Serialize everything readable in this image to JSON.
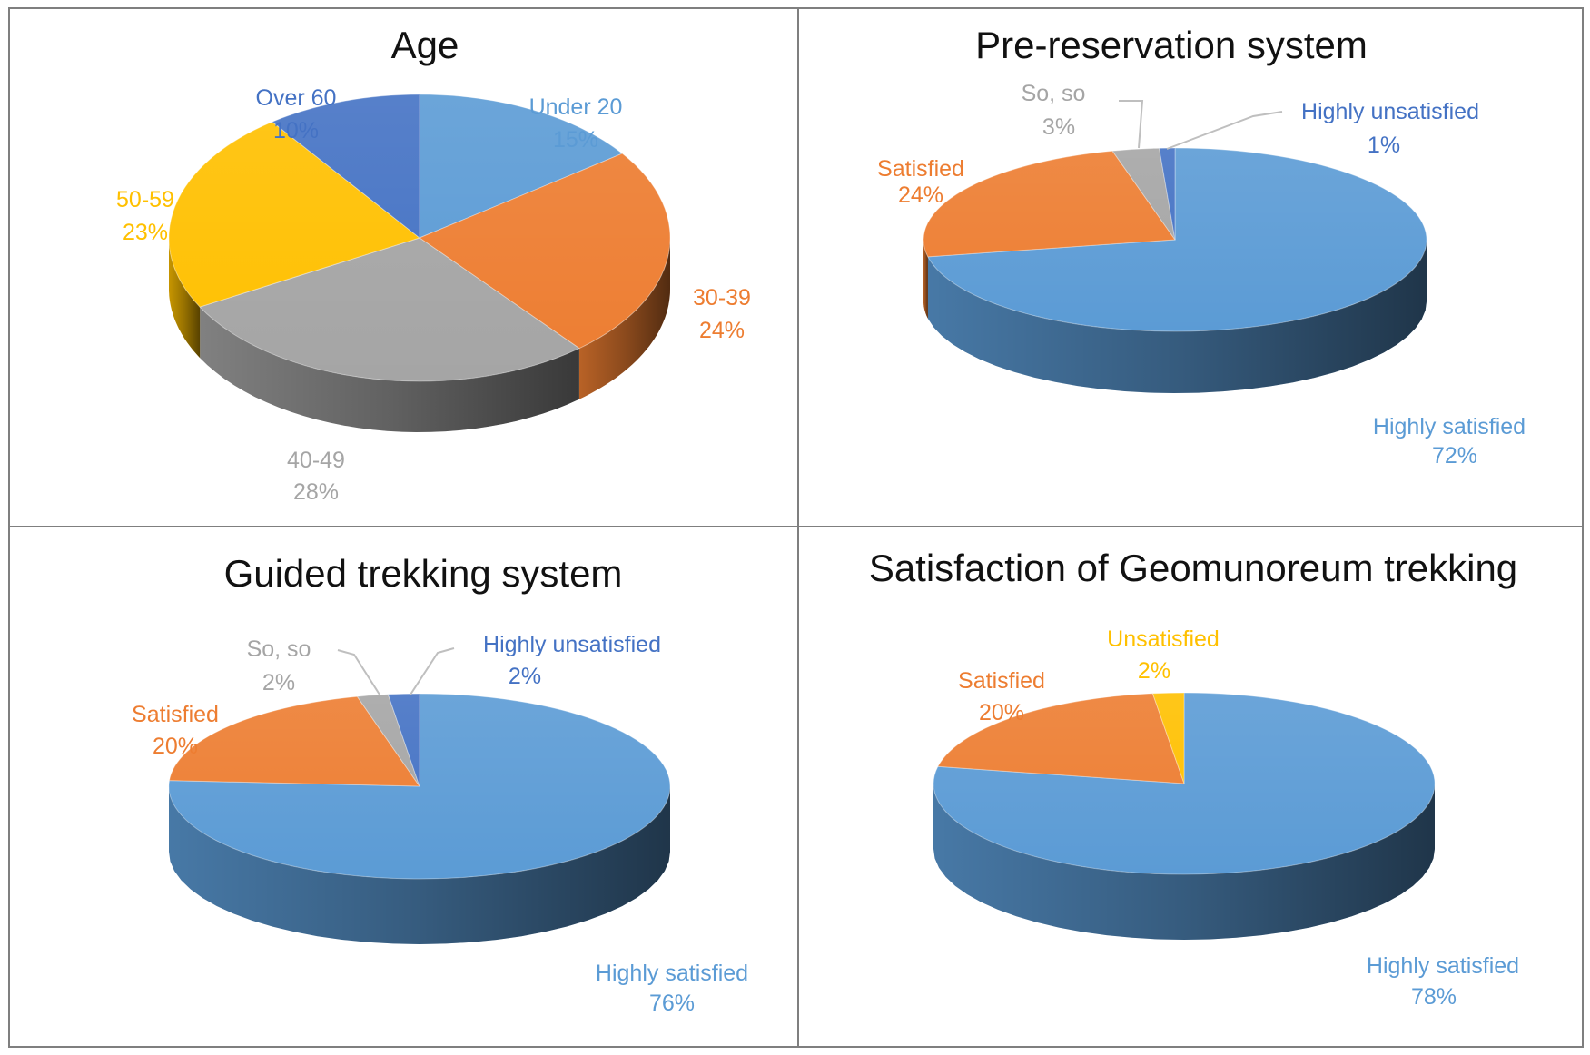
{
  "colors": {
    "blue": "#5b9bd5",
    "orange": "#ed7d31",
    "gray": "#a5a5a5",
    "yellow": "#ffc000",
    "darkblue": "#4472c4",
    "border": "#7f7f7f"
  },
  "chart_data": [
    {
      "type": "pie",
      "title": "Age",
      "slices": [
        {
          "label": "Under 20",
          "value": 15,
          "pct": "15%",
          "color": "#5b9bd5",
          "label_color": "#5b9bd5"
        },
        {
          "label": "30-39",
          "value": 24,
          "pct": "24%",
          "color": "#ed7d31",
          "label_color": "#ed7d31"
        },
        {
          "label": "40-49",
          "value": 28,
          "pct": "28%",
          "color": "#a5a5a5",
          "label_color": "#a5a5a5"
        },
        {
          "label": "50-59",
          "value": 23,
          "pct": "23%",
          "color": "#ffc000",
          "label_color": "#ffc000"
        },
        {
          "label": "Over 60",
          "value": 10,
          "pct": "10%",
          "color": "#4472c4",
          "label_color": "#4472c4"
        }
      ]
    },
    {
      "type": "pie",
      "title": "Pre-reservation system",
      "slices": [
        {
          "label": "Highly satisfied",
          "value": 72,
          "pct": "72%",
          "color": "#5b9bd5",
          "label_color": "#5b9bd5"
        },
        {
          "label": "Satisfied",
          "value": 24,
          "pct": "24%",
          "color": "#ed7d31",
          "label_color": "#ed7d31"
        },
        {
          "label": "So, so",
          "value": 3,
          "pct": "3%",
          "color": "#a5a5a5",
          "label_color": "#a5a5a5"
        },
        {
          "label": "Highly unsatisfied",
          "value": 1,
          "pct": "1%",
          "color": "#4472c4",
          "label_color": "#4472c4"
        }
      ]
    },
    {
      "type": "pie",
      "title": "Guided trekking system",
      "slices": [
        {
          "label": "Highly satisfied",
          "value": 76,
          "pct": "76%",
          "color": "#5b9bd5",
          "label_color": "#5b9bd5"
        },
        {
          "label": "Satisfied",
          "value": 20,
          "pct": "20%",
          "color": "#ed7d31",
          "label_color": "#ed7d31"
        },
        {
          "label": "So, so",
          "value": 2,
          "pct": "2%",
          "color": "#a5a5a5",
          "label_color": "#a5a5a5"
        },
        {
          "label": "Highly unsatisfied",
          "value": 2,
          "pct": "2%",
          "color": "#4472c4",
          "label_color": "#4472c4"
        }
      ]
    },
    {
      "type": "pie",
      "title": "Satisfaction of Geomunoreum trekking",
      "slices": [
        {
          "label": "Highly satisfied",
          "value": 78,
          "pct": "78%",
          "color": "#5b9bd5",
          "label_color": "#5b9bd5"
        },
        {
          "label": "Satisfied",
          "value": 20,
          "pct": "20%",
          "color": "#ed7d31",
          "label_color": "#ed7d31"
        },
        {
          "label": "Unsatisfied",
          "value": 2,
          "pct": "2%",
          "color": "#ffc000",
          "label_color": "#ffc000"
        }
      ]
    }
  ]
}
